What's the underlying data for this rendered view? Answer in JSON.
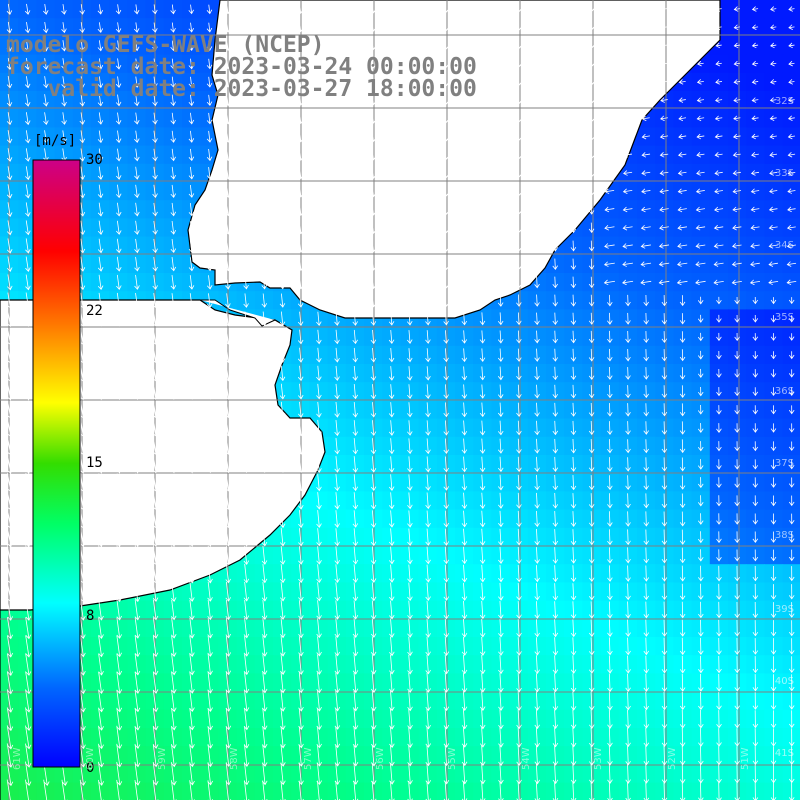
{
  "title": {
    "line1": "modelo GEFS-WAVE (NCEP)",
    "line2": "forecast date: 2023-03-24 00:00:00",
    "line3": "   valid date: 2023-03-27 18:00:00"
  },
  "colorbar": {
    "unit": "[m/s]",
    "ticks": [
      "30",
      "22",
      "15",
      "8",
      "0"
    ]
  },
  "lat_labels": [
    "32S",
    "33S",
    "34S",
    "35S",
    "36S",
    "37S",
    "38S",
    "39S",
    "40S",
    "41S"
  ],
  "lon_labels": [
    "61W",
    "60W",
    "59W",
    "58W",
    "57W",
    "56W",
    "55W",
    "54W",
    "53W",
    "52W",
    "51W"
  ],
  "colors": {
    "land": "#ffffff",
    "coast": "#000000",
    "grid": "#808080",
    "arrow": "#ffffff"
  }
}
